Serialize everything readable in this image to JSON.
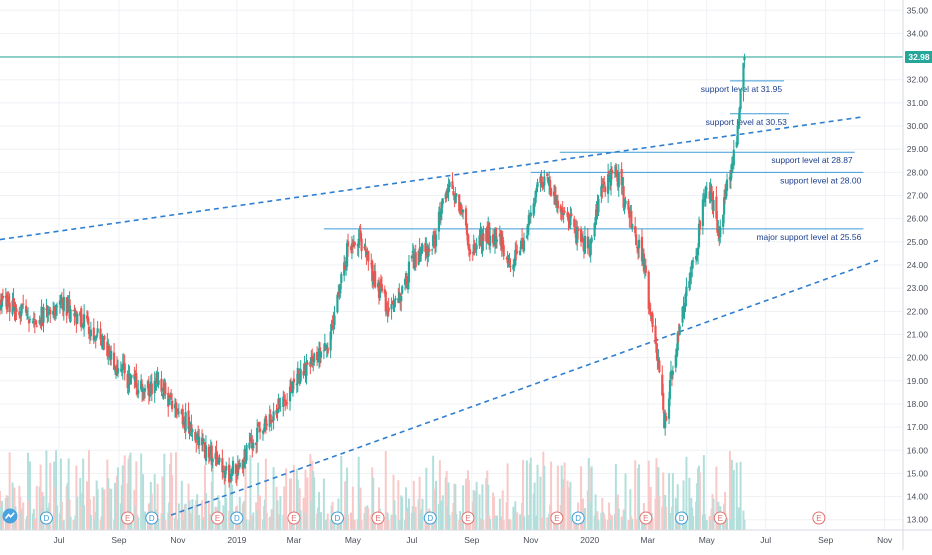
{
  "colors": {
    "up": "#26a69a",
    "down": "#ef5350",
    "volume_up": "#b2dfdb",
    "volume_down": "#f8c9c8",
    "support_line": "#3d9bd6",
    "trend_line": "#2f7fd1",
    "last_price_line": "#26a69a",
    "event_earnings": "#e0706e",
    "event_dividend": "#3d9bd6",
    "annotation_text": "#1d3f8f",
    "grid": "#eef1f5"
  },
  "chart_data": {
    "type": "candlestick",
    "title": "",
    "x_axis": {
      "type": "date",
      "range": [
        "2018-05-01",
        "2020-11-20"
      ],
      "tick_labels": [
        {
          "label": "Jul",
          "date": "2018-07-01"
        },
        {
          "label": "Sep",
          "date": "2018-09-01"
        },
        {
          "label": "Nov",
          "date": "2018-11-01"
        },
        {
          "label": "2019",
          "date": "2019-01-01"
        },
        {
          "label": "Mar",
          "date": "2019-03-01"
        },
        {
          "label": "May",
          "date": "2019-05-01"
        },
        {
          "label": "Jul",
          "date": "2019-07-01"
        },
        {
          "label": "Sep",
          "date": "2019-09-01"
        },
        {
          "label": "Nov",
          "date": "2019-11-01"
        },
        {
          "label": "2020",
          "date": "2020-01-01"
        },
        {
          "label": "Mar",
          "date": "2020-03-01"
        },
        {
          "label": "May",
          "date": "2020-05-01"
        },
        {
          "label": "Jul",
          "date": "2020-07-01"
        },
        {
          "label": "Sep",
          "date": "2020-09-01"
        },
        {
          "label": "Nov",
          "date": "2020-11-01"
        }
      ]
    },
    "y_axis": {
      "position": "right",
      "range": [
        12.6,
        35.4
      ],
      "tick_labels": [
        "13.00",
        "14.00",
        "15.00",
        "16.00",
        "17.00",
        "18.00",
        "19.00",
        "20.00",
        "21.00",
        "22.00",
        "23.00",
        "24.00",
        "25.00",
        "26.00",
        "27.00",
        "28.00",
        "29.00",
        "30.00",
        "31.00",
        "32.00",
        "33.00",
        "34.00",
        "35.00"
      ]
    },
    "grid": true,
    "last_price": {
      "value": 32.98,
      "label": "32.98"
    },
    "close_path": [
      [
        "2018-05-01",
        22.4
      ],
      [
        "2018-05-20",
        22.1
      ],
      [
        "2018-06-05",
        21.7
      ],
      [
        "2018-06-20",
        22.0
      ],
      [
        "2018-07-05",
        22.3
      ],
      [
        "2018-07-20",
        21.8
      ],
      [
        "2018-08-01",
        21.3
      ],
      [
        "2018-08-15",
        20.6
      ],
      [
        "2018-09-01",
        19.6
      ],
      [
        "2018-09-15",
        18.8
      ],
      [
        "2018-10-01",
        18.6
      ],
      [
        "2018-10-12",
        19.1
      ],
      [
        "2018-10-25",
        18.0
      ],
      [
        "2018-11-10",
        17.2
      ],
      [
        "2018-11-25",
        16.2
      ],
      [
        "2018-12-10",
        15.6
      ],
      [
        "2018-12-24",
        15.0
      ],
      [
        "2019-01-05",
        15.4
      ],
      [
        "2019-01-20",
        16.6
      ],
      [
        "2019-02-05",
        17.4
      ],
      [
        "2019-02-20",
        18.3
      ],
      [
        "2019-03-05",
        19.2
      ],
      [
        "2019-03-20",
        19.8
      ],
      [
        "2019-04-05",
        20.6
      ],
      [
        "2019-04-15",
        22.5
      ],
      [
        "2019-04-25",
        24.6
      ],
      [
        "2019-05-05",
        25.3
      ],
      [
        "2019-05-15",
        24.3
      ],
      [
        "2019-06-01",
        22.6
      ],
      [
        "2019-06-10",
        21.9
      ],
      [
        "2019-06-20",
        22.7
      ],
      [
        "2019-07-01",
        24.2
      ],
      [
        "2019-07-15",
        24.6
      ],
      [
        "2019-07-25",
        25.1
      ],
      [
        "2019-08-01",
        26.6
      ],
      [
        "2019-08-10",
        27.5
      ],
      [
        "2019-08-20",
        26.5
      ],
      [
        "2019-09-01",
        24.4
      ],
      [
        "2019-09-15",
        25.4
      ],
      [
        "2019-10-01",
        25.0
      ],
      [
        "2019-10-10",
        24.0
      ],
      [
        "2019-10-25",
        24.9
      ],
      [
        "2019-11-05",
        26.9
      ],
      [
        "2019-11-15",
        27.8
      ],
      [
        "2019-11-25",
        27.0
      ],
      [
        "2019-12-05",
        26.3
      ],
      [
        "2019-12-20",
        25.2
      ],
      [
        "2020-01-01",
        24.6
      ],
      [
        "2020-01-10",
        26.8
      ],
      [
        "2020-01-20",
        27.6
      ],
      [
        "2020-01-27",
        28.3
      ],
      [
        "2020-02-05",
        26.8
      ],
      [
        "2020-02-15",
        25.6
      ],
      [
        "2020-02-25",
        24.2
      ],
      [
        "2020-03-05",
        21.6
      ],
      [
        "2020-03-12",
        20.0
      ],
      [
        "2020-03-18",
        17.0
      ],
      [
        "2020-03-24",
        18.8
      ],
      [
        "2020-04-01",
        20.9
      ],
      [
        "2020-04-10",
        22.8
      ],
      [
        "2020-04-20",
        24.6
      ],
      [
        "2020-05-01",
        27.6
      ],
      [
        "2020-05-08",
        26.6
      ],
      [
        "2020-05-14",
        25.3
      ],
      [
        "2020-05-20",
        26.8
      ],
      [
        "2020-05-27",
        28.6
      ],
      [
        "2020-06-02",
        29.8
      ],
      [
        "2020-06-05",
        31.4
      ],
      [
        "2020-06-09",
        32.98
      ]
    ],
    "volume_range": [
      0,
      1
    ],
    "horizontal_levels": [
      {
        "label": "support level at 31.95",
        "value": 31.95,
        "start": "2020-05-25",
        "end": "2020-07-20"
      },
      {
        "label": "support level at 30.53",
        "value": 30.53,
        "start": "2020-05-25",
        "end": "2020-07-25"
      },
      {
        "label": "support level at 28.87",
        "value": 28.87,
        "start": "2019-12-01",
        "end": "2020-10-01"
      },
      {
        "label": "support level at 28.00",
        "value": 28.0,
        "start": "2019-11-01",
        "end": "2020-10-10"
      },
      {
        "label": "major support level at 25.56",
        "value": 25.56,
        "start": "2019-04-01",
        "end": "2020-10-10"
      }
    ],
    "trend_lines": [
      {
        "name": "upper",
        "from": [
          "2018-05-01",
          25.1
        ],
        "to": [
          "2020-10-10",
          30.4
        ]
      },
      {
        "name": "lower",
        "from": [
          "2018-10-25",
          13.2
        ],
        "to": [
          "2020-10-25",
          24.2
        ]
      }
    ],
    "event_markers": [
      {
        "type": "dividend",
        "label": "D",
        "date": "2018-06-18"
      },
      {
        "type": "earnings",
        "label": "E",
        "date": "2018-09-10"
      },
      {
        "type": "dividend",
        "label": "D",
        "date": "2018-10-05"
      },
      {
        "type": "earnings",
        "label": "E",
        "date": "2018-12-12"
      },
      {
        "type": "dividend",
        "label": "D",
        "date": "2019-01-01"
      },
      {
        "type": "earnings",
        "label": "E",
        "date": "2019-03-01"
      },
      {
        "type": "dividend",
        "label": "D",
        "date": "2019-04-15"
      },
      {
        "type": "earnings",
        "label": "E",
        "date": "2019-05-27"
      },
      {
        "type": "dividend",
        "label": "D",
        "date": "2019-07-20"
      },
      {
        "type": "earnings",
        "label": "E",
        "date": "2019-08-28"
      },
      {
        "type": "earnings",
        "label": "E",
        "date": "2019-11-28"
      },
      {
        "type": "dividend",
        "label": "D",
        "date": "2019-12-20"
      },
      {
        "type": "earnings",
        "label": "E",
        "date": "2020-02-28"
      },
      {
        "type": "dividend",
        "label": "D",
        "date": "2020-04-05"
      },
      {
        "type": "earnings",
        "label": "E",
        "date": "2020-05-15"
      },
      {
        "type": "earnings",
        "label": "E",
        "date": "2020-08-25"
      }
    ]
  }
}
